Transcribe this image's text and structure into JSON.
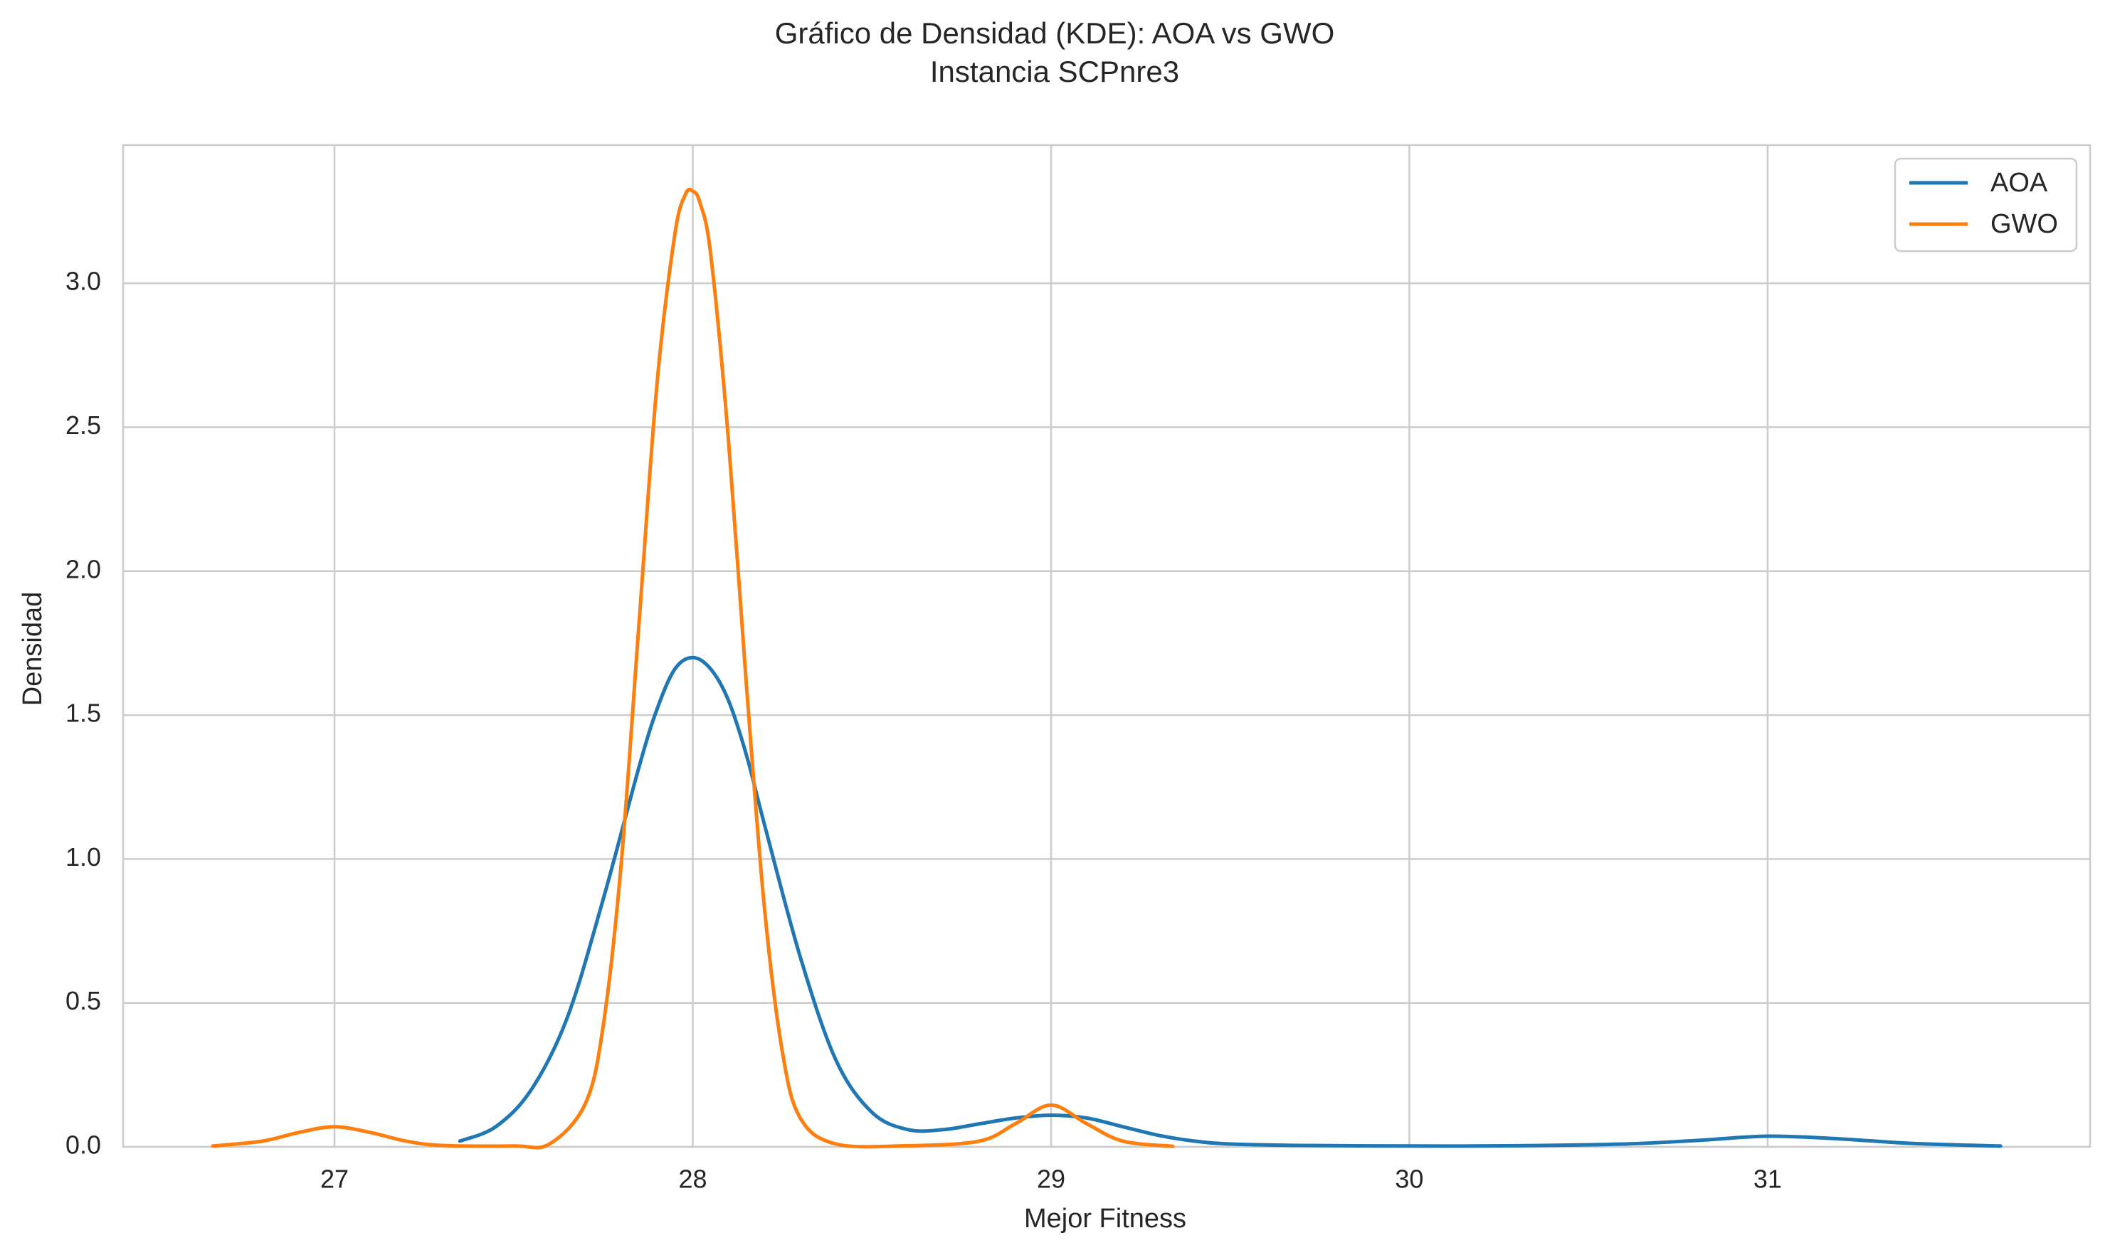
{
  "chart_data": {
    "type": "line",
    "title": "Gráfico de Densidad (KDE): AOA vs GWO",
    "subtitle": "Instancia SCPnre3",
    "xlabel": "Mejor Fitness",
    "ylabel": "Densidad",
    "xlim": [
      26.41,
      31.9
    ],
    "ylim": [
      0,
      3.48
    ],
    "x_ticks": [
      27,
      28,
      29,
      30,
      31
    ],
    "y_ticks": [
      0.0,
      0.5,
      1.0,
      1.5,
      2.0,
      2.5,
      3.0
    ],
    "x_tick_labels": [
      "27",
      "28",
      "29",
      "30",
      "31"
    ],
    "y_tick_labels": [
      "0.0",
      "0.5",
      "1.0",
      "1.5",
      "2.0",
      "2.5",
      "3.0"
    ],
    "grid": true,
    "legend_position": "top-right",
    "series": [
      {
        "name": "AOA",
        "color": "#1f77b4",
        "x": [
          27.35,
          27.45,
          27.55,
          27.65,
          27.75,
          27.85,
          27.9,
          27.95,
          28.0,
          28.05,
          28.1,
          28.15,
          28.2,
          28.3,
          28.4,
          28.5,
          28.6,
          28.7,
          28.8,
          28.9,
          29.0,
          29.1,
          29.2,
          29.3,
          29.4,
          29.5,
          29.7,
          30.0,
          30.3,
          30.6,
          30.8,
          31.0,
          31.2,
          31.4,
          31.65
        ],
        "y": [
          0.02,
          0.07,
          0.2,
          0.45,
          0.86,
          1.32,
          1.52,
          1.66,
          1.7,
          1.66,
          1.55,
          1.36,
          1.12,
          0.66,
          0.3,
          0.12,
          0.06,
          0.06,
          0.08,
          0.1,
          0.11,
          0.1,
          0.07,
          0.04,
          0.02,
          0.01,
          0.005,
          0.003,
          0.004,
          0.01,
          0.022,
          0.037,
          0.028,
          0.012,
          0.003
        ]
      },
      {
        "name": "GWO",
        "color": "#ff7f0e",
        "x": [
          26.66,
          26.8,
          26.9,
          27.0,
          27.1,
          27.2,
          27.3,
          27.5,
          27.6,
          27.7,
          27.75,
          27.8,
          27.85,
          27.9,
          27.95,
          27.98,
          28.0,
          28.02,
          28.05,
          28.1,
          28.15,
          28.2,
          28.25,
          28.3,
          28.4,
          28.6,
          28.8,
          28.9,
          29.0,
          29.1,
          29.2,
          29.34
        ],
        "y": [
          0.003,
          0.02,
          0.05,
          0.07,
          0.05,
          0.02,
          0.005,
          0.003,
          0.01,
          0.15,
          0.42,
          0.98,
          1.82,
          2.65,
          3.17,
          3.31,
          3.32,
          3.28,
          3.1,
          2.45,
          1.6,
          0.83,
          0.33,
          0.1,
          0.01,
          0.004,
          0.02,
          0.08,
          0.145,
          0.08,
          0.02,
          0.002
        ]
      }
    ]
  }
}
